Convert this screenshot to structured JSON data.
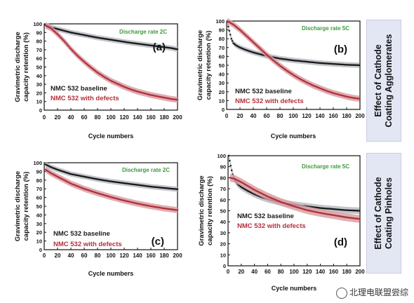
{
  "side_labels": [
    {
      "text_line1": "Effect of Cathode",
      "text_line2": "Coating Agglomerates"
    },
    {
      "text_line1": "Effect of Cathode",
      "text_line2": "Coating Pinholes"
    }
  ],
  "watermark": "北理电联盟尝综",
  "colors": {
    "baseline": "#1a1a1a",
    "defects": "#b3303a",
    "rate_text": "#3c9a3c",
    "band_grey": "#b8bcc2",
    "band_red": "#d8a0a6",
    "side_band": "#e3e6f3"
  },
  "chart_data": [
    {
      "type": "line",
      "panel_label": "(a)",
      "annotation": "Discharge rate 2C",
      "xlabel": "Cycle numbers",
      "ylabel": [
        "Gravimetric discharge",
        "capacity retention (%)"
      ],
      "xlim": [
        0,
        200
      ],
      "ylim": [
        0,
        100
      ],
      "xticks": [
        0,
        20,
        40,
        60,
        80,
        100,
        120,
        140,
        160,
        180,
        200
      ],
      "yticks": [
        0,
        10,
        20,
        30,
        40,
        50,
        60,
        70,
        80,
        90,
        100
      ],
      "series": [
        {
          "name": "NMC  532 baseline",
          "color": "#1a1a1a",
          "x": [
            2,
            10,
            20,
            30,
            40,
            50,
            60,
            70,
            80,
            90,
            100,
            110,
            120,
            130,
            140,
            150,
            160,
            170,
            180,
            190,
            200
          ],
          "y": [
            99,
            96,
            94,
            92,
            90,
            88.5,
            87,
            85.5,
            84,
            82.8,
            81.6,
            80.4,
            79.2,
            78,
            77,
            76,
            75,
            74,
            73,
            72,
            70.5
          ]
        },
        {
          "name": "NMC  532 with defects",
          "color": "#b3303a",
          "x": [
            2,
            10,
            20,
            30,
            40,
            50,
            60,
            70,
            80,
            90,
            100,
            110,
            120,
            130,
            140,
            150,
            160,
            170,
            180,
            190,
            200
          ],
          "y": [
            98,
            95,
            88,
            80,
            71,
            63,
            56,
            49.5,
            43.5,
            38.5,
            34,
            30.5,
            27,
            24,
            21.5,
            19.5,
            17.5,
            16,
            14.5,
            13,
            12
          ]
        }
      ]
    },
    {
      "type": "line",
      "panel_label": "(b)",
      "annotation": "Discharge rate 5C",
      "xlabel": "Cycle numbers",
      "ylabel": [
        "Gravimetric discharge",
        "capacity retention (%)"
      ],
      "xlim": [
        0,
        200
      ],
      "ylim": [
        0,
        100
      ],
      "xticks": [
        0,
        20,
        40,
        60,
        80,
        100,
        120,
        140,
        160,
        180,
        200
      ],
      "yticks": [
        0,
        10,
        20,
        30,
        40,
        50,
        60,
        70,
        80,
        90,
        100
      ],
      "series": [
        {
          "name": "NMC  532 baseline",
          "color": "#1a1a1a",
          "x": [
            1,
            3,
            5,
            7,
            10,
            15,
            20,
            30,
            40,
            50,
            60,
            70,
            80,
            90,
            100,
            120,
            140,
            160,
            180,
            200
          ],
          "y": [
            99,
            92,
            86,
            80,
            75,
            72,
            70,
            67,
            64.5,
            62.5,
            60.5,
            59,
            57.5,
            56.5,
            55.5,
            54,
            52.5,
            51.5,
            50.5,
            50
          ]
        },
        {
          "name": "NMC  532 with defects",
          "color": "#b3303a",
          "x": [
            1,
            10,
            20,
            30,
            40,
            50,
            60,
            70,
            80,
            90,
            100,
            110,
            120,
            130,
            140,
            150,
            160,
            170,
            180,
            190,
            200
          ],
          "y": [
            100,
            96,
            90,
            83,
            76,
            69,
            62,
            55.5,
            49.5,
            44,
            39,
            34.5,
            30.5,
            27,
            24,
            21,
            18.5,
            16.5,
            14.5,
            13,
            12
          ]
        }
      ]
    },
    {
      "type": "line",
      "panel_label": "(c)",
      "annotation": "Discharge rate 2C",
      "xlabel": "Cycle numbers",
      "ylabel": [
        "Gravimetric discharge",
        "capacity retention (%)"
      ],
      "xlim": [
        0,
        200
      ],
      "ylim": [
        0,
        100
      ],
      "xticks": [
        0,
        20,
        40,
        60,
        80,
        100,
        120,
        140,
        160,
        180,
        200
      ],
      "yticks": [
        0,
        10,
        20,
        30,
        40,
        50,
        60,
        70,
        80,
        90,
        100
      ],
      "series": [
        {
          "name": "NMC  532 baseline",
          "color": "#1a1a1a",
          "x": [
            2,
            10,
            20,
            30,
            40,
            60,
            80,
            100,
            120,
            140,
            160,
            180,
            200
          ],
          "y": [
            98,
            95,
            92,
            89.5,
            87,
            84,
            81,
            78.5,
            76.5,
            74.5,
            72.5,
            71,
            69.5
          ]
        },
        {
          "name": "NMC  532 with defects",
          "color": "#b3303a",
          "x": [
            2,
            10,
            20,
            30,
            40,
            60,
            80,
            100,
            120,
            140,
            160,
            180,
            200
          ],
          "y": [
            92,
            88,
            84,
            80,
            76,
            70,
            65,
            60.5,
            56.5,
            53,
            50,
            47.5,
            45.5
          ]
        }
      ]
    },
    {
      "type": "line",
      "panel_label": "(d)",
      "annotation": "Discharge rate 5C",
      "xlabel": "Cycle numbers",
      "ylabel": [
        "Gravimetric discharge",
        "capacity retention (%)"
      ],
      "xlim": [
        0,
        200
      ],
      "ylim": [
        0,
        100
      ],
      "xticks": [
        0,
        20,
        40,
        60,
        80,
        100,
        120,
        140,
        160,
        180,
        200
      ],
      "yticks": [
        0,
        10,
        20,
        30,
        40,
        50,
        60,
        70,
        80,
        90,
        100
      ],
      "series": [
        {
          "name": "NMC  532 baseline",
          "color": "#1a1a1a",
          "x": [
            1,
            3,
            5,
            7,
            10,
            15,
            20,
            30,
            40,
            50,
            60,
            80,
            100,
            120,
            140,
            160,
            180,
            200
          ],
          "y": [
            100,
            94,
            88,
            83,
            78,
            74,
            71.5,
            68,
            65,
            62.5,
            60.5,
            57.5,
            55.5,
            54,
            52.5,
            51.5,
            50.5,
            50
          ]
        },
        {
          "name": "NMC  532 with defects",
          "color": "#b3303a",
          "x": [
            3,
            10,
            20,
            30,
            40,
            50,
            60,
            80,
            100,
            120,
            140,
            160,
            180,
            200
          ],
          "y": [
            80,
            79,
            76,
            72.5,
            69,
            66,
            63,
            58,
            54,
            50.5,
            48,
            46,
            44,
            42.5
          ]
        }
      ]
    }
  ]
}
